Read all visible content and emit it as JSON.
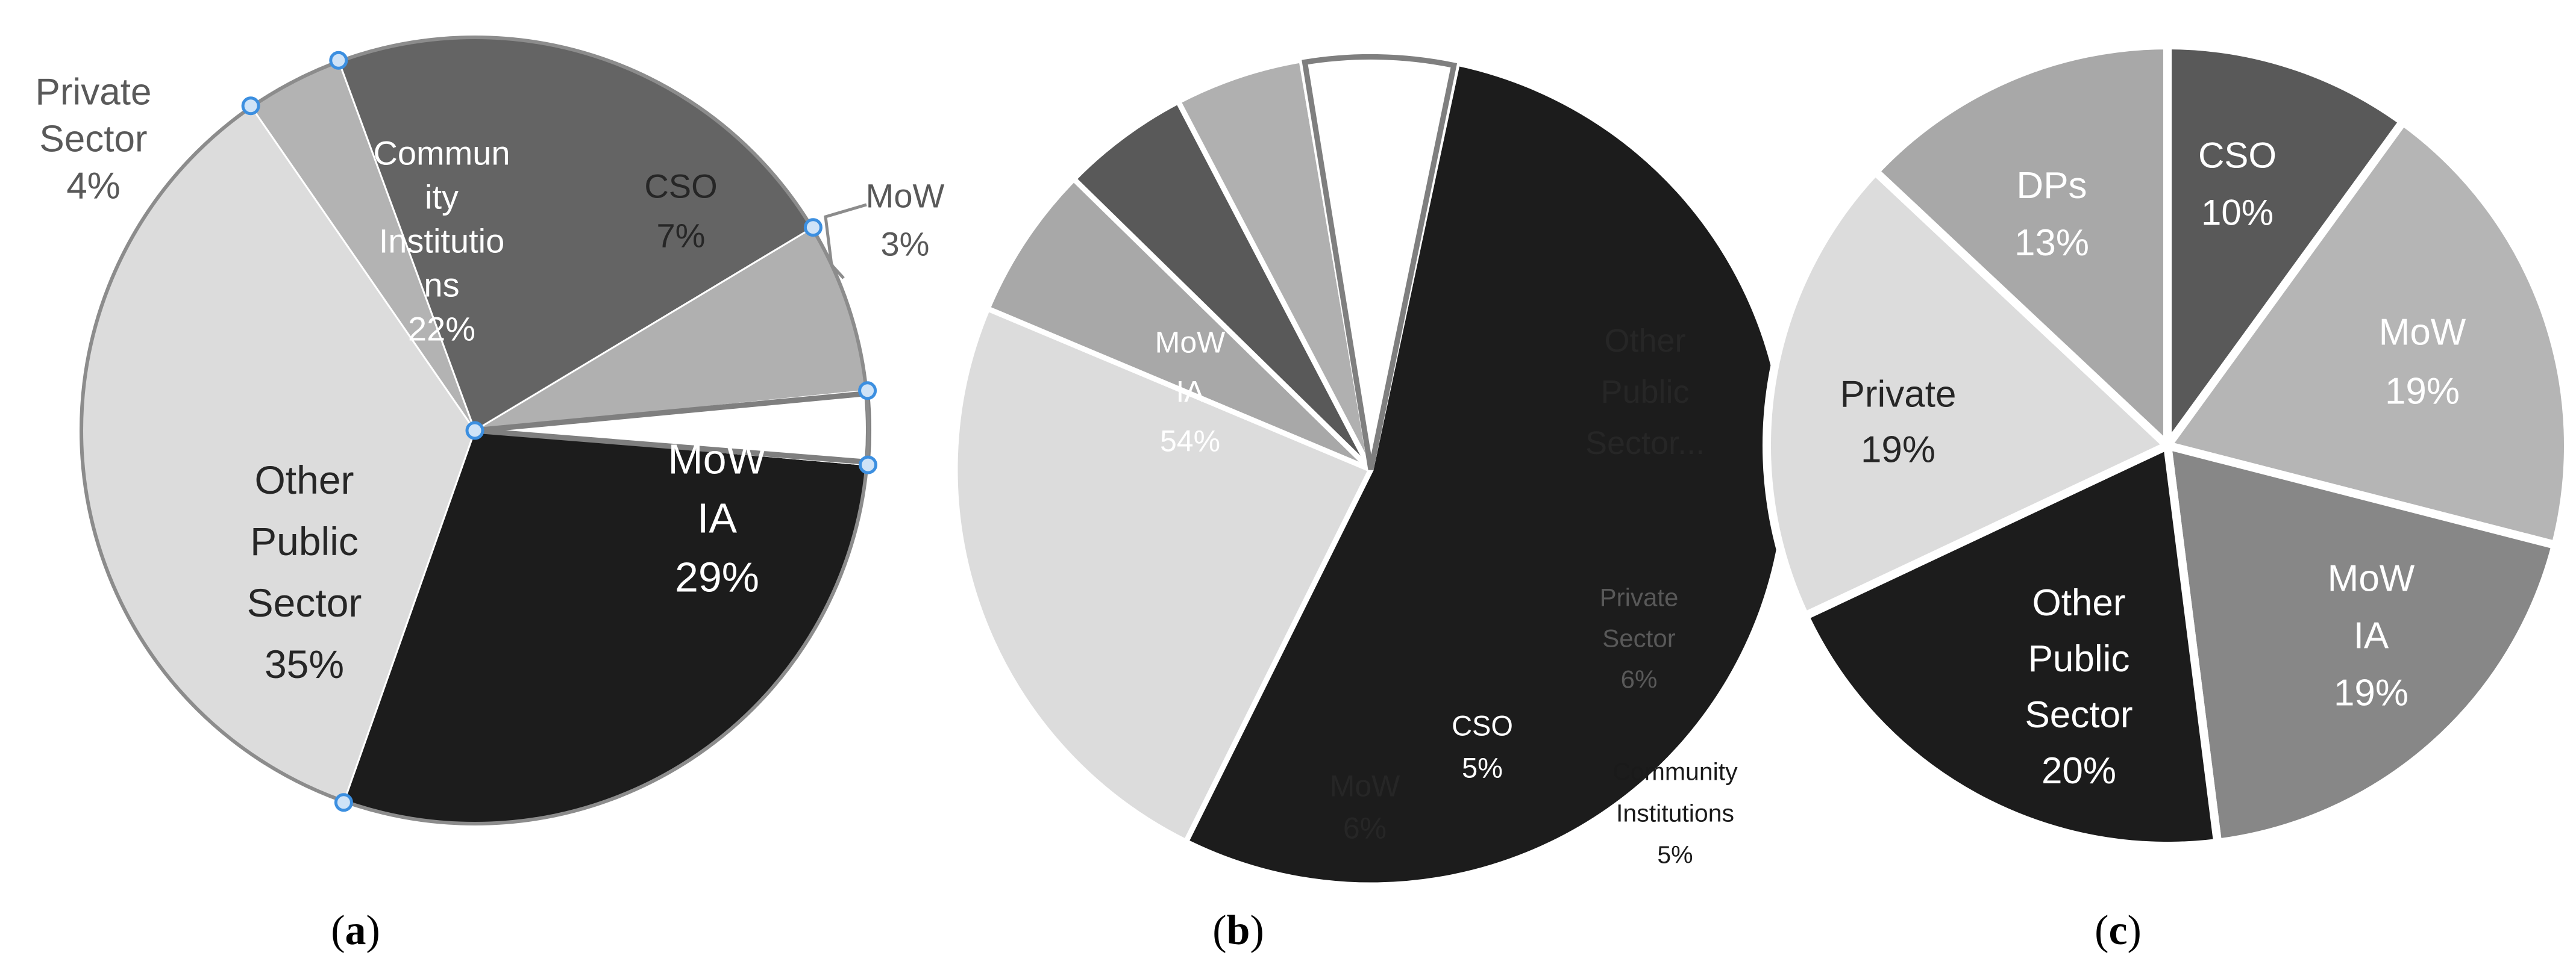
{
  "figure": {
    "captions": [
      "(a)",
      "(b)",
      "(c)"
    ]
  },
  "chart_data": [
    {
      "type": "pie",
      "panel": "a",
      "slices": [
        {
          "lines": [
            "MoW",
            "IA",
            "29%"
          ],
          "value": 29,
          "color": "#1c1c1c",
          "text_color": "#ffffff",
          "label_position": "inside"
        },
        {
          "lines": [
            "Other",
            "Public",
            "Sector",
            "35%"
          ],
          "value": 35,
          "color": "#dcdcdc",
          "text_color": "#262626",
          "label_position": "inside"
        },
        {
          "lines": [
            "Private",
            "Sector",
            "4%"
          ],
          "value": 4,
          "color": "#b3b3b3",
          "text_color": "#595959",
          "label_position": "outside"
        },
        {
          "lines": [
            "Commun",
            "ity",
            "Institutio",
            "ns",
            "22%"
          ],
          "value": 22,
          "color": "#646464",
          "text_color": "#ffffff",
          "label_position": "inside"
        },
        {
          "lines": [
            "CSO",
            "7%"
          ],
          "value": 7,
          "color": "#b0b0b0",
          "text_color": "#262626",
          "label_position": "inside"
        },
        {
          "lines": [
            "MoW",
            "3%"
          ],
          "value": 3,
          "color": "#ffffff",
          "text_color": "#595959",
          "label_position": "outside"
        }
      ]
    },
    {
      "type": "pie",
      "panel": "b",
      "slices": [
        {
          "lines": [
            "MoW",
            "IA",
            "54%"
          ],
          "value": 54,
          "color": "#1c1c1c",
          "text_color": "#ffffff"
        },
        {
          "lines": [
            "Other",
            "Public",
            "Sector..."
          ],
          "value": 24,
          "color": "#dcdcdc",
          "text_color": "#262626"
        },
        {
          "lines": [
            "Private",
            "Sector",
            "6%"
          ],
          "value": 6,
          "color": "#a8a8a8",
          "text_color": "#595959"
        },
        {
          "lines": [
            "Community",
            "Institutions",
            "5%"
          ],
          "value": 5,
          "color": "#595959",
          "text_color": "#1a1a1a"
        },
        {
          "lines": [
            "CSO",
            "5%"
          ],
          "value": 5,
          "color": "#b0b0b0",
          "text_color": "#ffffff"
        },
        {
          "lines": [
            "MoW",
            "6%"
          ],
          "value": 6,
          "color": "#ffffff",
          "text_color": "#262626"
        }
      ]
    },
    {
      "type": "pie",
      "panel": "c",
      "slices": [
        {
          "lines": [
            "CSO",
            "10%"
          ],
          "value": 10,
          "color": "#595959",
          "text_color": "#ffffff"
        },
        {
          "lines": [
            "MoW",
            "19%"
          ],
          "value": 19,
          "color": "#b5b5b5",
          "text_color": "#ffffff"
        },
        {
          "lines": [
            "MoW",
            "IA",
            "19%"
          ],
          "value": 19,
          "color": "#878787",
          "text_color": "#ffffff"
        },
        {
          "lines": [
            "Other",
            "Public",
            "Sector",
            "20%"
          ],
          "value": 20,
          "color": "#1c1c1c",
          "text_color": "#ffffff"
        },
        {
          "lines": [
            "Private",
            "19%"
          ],
          "value": 19,
          "color": "#dcdcdc",
          "text_color": "#262626"
        },
        {
          "lines": [
            "DPs",
            "13%"
          ],
          "value": 13,
          "color": "#a8a8a8",
          "text_color": "#ffffff"
        }
      ]
    }
  ]
}
